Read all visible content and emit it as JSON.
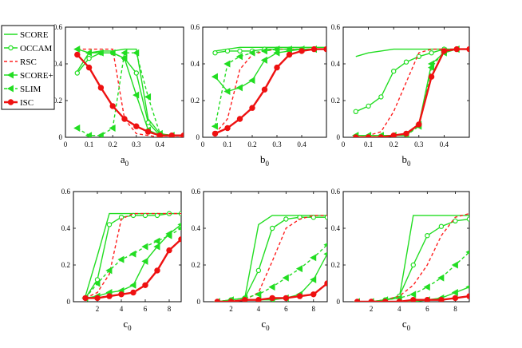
{
  "legend": [
    {
      "key": "score",
      "label": "SCORE",
      "color": "#22dd22",
      "dash": "",
      "marker": "none"
    },
    {
      "key": "occam",
      "label": "OCCAM",
      "color": "#22dd22",
      "dash": "",
      "marker": "circle"
    },
    {
      "key": "rsc",
      "label": "RSC",
      "color": "#ff2020",
      "dash": "4,3",
      "marker": "none"
    },
    {
      "key": "scorep",
      "label": "SCORE+",
      "color": "#22dd22",
      "dash": "",
      "marker": "triangle"
    },
    {
      "key": "slim",
      "label": "SLIM",
      "color": "#22dd22",
      "dash": "4,3",
      "marker": "triangle"
    },
    {
      "key": "isc",
      "label": "ISC",
      "color": "#ee1111",
      "dash": "",
      "marker": "circle-bold"
    }
  ],
  "chart_data": [
    {
      "type": "line",
      "xlabel": "a",
      "xsub": "0",
      "xlim": [
        0,
        0.5
      ],
      "ylim": [
        0,
        0.6
      ],
      "xticks": [
        "0",
        "0.1",
        "0.2",
        "0.3",
        "0.4"
      ],
      "xtick_vals": [
        0,
        0.1,
        0.2,
        0.3,
        0.4
      ],
      "yticks": [
        "0",
        "0.2",
        "0.4",
        "0.6"
      ],
      "ytick_vals": [
        0,
        0.2,
        0.4,
        0.6
      ],
      "x": [
        0.05,
        0.1,
        0.15,
        0.2,
        0.25,
        0.3,
        0.35,
        0.4,
        0.45,
        0.5
      ],
      "series": [
        {
          "key": "score",
          "values": [
            0.36,
            0.46,
            0.47,
            0.47,
            0.48,
            0.48,
            0.1,
            0.02,
            0.01,
            0.01
          ]
        },
        {
          "key": "occam",
          "values": [
            0.35,
            0.43,
            0.46,
            0.46,
            0.43,
            0.35,
            0.08,
            0.01,
            0.01,
            0.01
          ]
        },
        {
          "key": "rsc",
          "values": [
            0.48,
            0.48,
            0.48,
            0.48,
            0.1,
            0.02,
            0.01,
            0.0,
            0.0,
            0.0
          ]
        },
        {
          "key": "scorep",
          "values": [
            0.48,
            0.46,
            0.46,
            0.46,
            0.43,
            0.23,
            0.04,
            0.01,
            0.01,
            0.01
          ]
        },
        {
          "key": "slim",
          "values": [
            0.05,
            0.01,
            0.01,
            0.05,
            0.46,
            0.46,
            0.22,
            0.02,
            0.01,
            0.01
          ]
        },
        {
          "key": "isc",
          "values": [
            0.45,
            0.38,
            0.27,
            0.17,
            0.1,
            0.06,
            0.03,
            0.01,
            0.01,
            0.01
          ]
        }
      ]
    },
    {
      "type": "line",
      "xlabel": "b",
      "xsub": "0",
      "xlim": [
        0,
        0.5
      ],
      "ylim": [
        0,
        0.6
      ],
      "xticks": [
        "0",
        "0.1",
        "0.2",
        "0.3",
        "0.4"
      ],
      "xtick_vals": [
        0,
        0.1,
        0.2,
        0.3,
        0.4
      ],
      "yticks": [
        "0",
        "0.2",
        "0.4",
        "0.6"
      ],
      "ytick_vals": [
        0,
        0.2,
        0.4,
        0.6
      ],
      "x": [
        0.05,
        0.1,
        0.15,
        0.2,
        0.25,
        0.3,
        0.35,
        0.4,
        0.45,
        0.5
      ],
      "series": [
        {
          "key": "score",
          "values": [
            0.47,
            0.48,
            0.49,
            0.49,
            0.49,
            0.49,
            0.49,
            0.49,
            0.49,
            0.49
          ]
        },
        {
          "key": "occam",
          "values": [
            0.46,
            0.47,
            0.47,
            0.47,
            0.48,
            0.48,
            0.48,
            0.48,
            0.48,
            0.48
          ]
        },
        {
          "key": "rsc",
          "values": [
            0.02,
            0.1,
            0.37,
            0.45,
            0.47,
            0.48,
            0.48,
            0.48,
            0.48,
            0.48
          ]
        },
        {
          "key": "scorep",
          "values": [
            0.33,
            0.25,
            0.27,
            0.31,
            0.42,
            0.46,
            0.47,
            0.48,
            0.48,
            0.48
          ]
        },
        {
          "key": "slim",
          "values": [
            0.06,
            0.4,
            0.44,
            0.46,
            0.47,
            0.48,
            0.48,
            0.48,
            0.48,
            0.48
          ]
        },
        {
          "key": "isc",
          "values": [
            0.02,
            0.05,
            0.1,
            0.16,
            0.26,
            0.38,
            0.45,
            0.47,
            0.48,
            0.48
          ]
        }
      ]
    },
    {
      "type": "line",
      "xlabel": "b",
      "xsub": "0",
      "xlim": [
        0,
        0.5
      ],
      "ylim": [
        0,
        0.6
      ],
      "xticks": [
        "0",
        "0.1",
        "0.2",
        "0.3",
        "0.4"
      ],
      "xtick_vals": [
        0,
        0.1,
        0.2,
        0.3,
        0.4
      ],
      "yticks": [
        "0",
        "0.2",
        "0.4",
        "0.6"
      ],
      "ytick_vals": [
        0,
        0.2,
        0.4,
        0.6
      ],
      "x": [
        0.05,
        0.1,
        0.15,
        0.2,
        0.25,
        0.3,
        0.35,
        0.4,
        0.45,
        0.5
      ],
      "series": [
        {
          "key": "score",
          "values": [
            0.44,
            0.46,
            0.47,
            0.48,
            0.48,
            0.48,
            0.48,
            0.48,
            0.48,
            0.48
          ]
        },
        {
          "key": "occam",
          "values": [
            0.14,
            0.17,
            0.22,
            0.36,
            0.41,
            0.44,
            0.46,
            0.48,
            0.48,
            0.48
          ]
        },
        {
          "key": "rsc",
          "values": [
            0.01,
            0.01,
            0.03,
            0.14,
            0.3,
            0.46,
            0.48,
            0.48,
            0.48,
            0.48
          ]
        },
        {
          "key": "scorep",
          "values": [
            0.01,
            0.01,
            0.01,
            0.01,
            0.01,
            0.07,
            0.4,
            0.46,
            0.48,
            0.48
          ]
        },
        {
          "key": "slim",
          "values": [
            0.01,
            0.01,
            0.01,
            0.01,
            0.01,
            0.06,
            0.38,
            0.47,
            0.48,
            0.48
          ]
        },
        {
          "key": "isc",
          "values": [
            0.0,
            0.0,
            0.0,
            0.01,
            0.02,
            0.07,
            0.33,
            0.47,
            0.48,
            0.48
          ]
        }
      ]
    },
    {
      "type": "line",
      "xlabel": "c",
      "xsub": "0",
      "xlim": [
        0,
        9
      ],
      "ylim": [
        0,
        0.6
      ],
      "xticks": [
        "2",
        "4",
        "6",
        "8"
      ],
      "xtick_vals": [
        2,
        4,
        6,
        8
      ],
      "yticks": [
        "0",
        "0.2",
        "0.4",
        "0.6"
      ],
      "ytick_vals": [
        0,
        0.2,
        0.4,
        0.6
      ],
      "x": [
        1,
        2,
        3,
        4,
        5,
        6,
        7,
        8,
        9
      ],
      "series": [
        {
          "key": "score",
          "values": [
            0.03,
            0.25,
            0.48,
            0.48,
            0.48,
            0.48,
            0.48,
            0.48,
            0.48
          ]
        },
        {
          "key": "occam",
          "values": [
            0.02,
            0.12,
            0.42,
            0.46,
            0.47,
            0.47,
            0.47,
            0.48,
            0.48
          ]
        },
        {
          "key": "rsc",
          "values": [
            0.02,
            0.05,
            0.15,
            0.45,
            0.48,
            0.48,
            0.48,
            0.48,
            0.48
          ]
        },
        {
          "key": "scorep",
          "values": [
            0.02,
            0.03,
            0.05,
            0.06,
            0.09,
            0.22,
            0.3,
            0.37,
            0.42
          ]
        },
        {
          "key": "slim",
          "values": [
            0.02,
            0.1,
            0.17,
            0.23,
            0.26,
            0.3,
            0.33,
            0.36,
            0.4
          ]
        },
        {
          "key": "isc",
          "values": [
            0.02,
            0.02,
            0.03,
            0.04,
            0.05,
            0.09,
            0.17,
            0.28,
            0.34
          ]
        }
      ]
    },
    {
      "type": "line",
      "xlabel": "c",
      "xsub": "0",
      "xlim": [
        0,
        9
      ],
      "ylim": [
        0,
        0.6
      ],
      "xticks": [
        "2",
        "4",
        "6",
        "8"
      ],
      "xtick_vals": [
        2,
        4,
        6,
        8
      ],
      "yticks": [
        "0",
        "0.2",
        "0.4",
        "0.6"
      ],
      "ytick_vals": [
        0,
        0.2,
        0.4,
        0.6
      ],
      "x": [
        1,
        2,
        3,
        4,
        5,
        6,
        7,
        8,
        9
      ],
      "series": [
        {
          "key": "score",
          "values": [
            0.0,
            0.01,
            0.02,
            0.42,
            0.47,
            0.47,
            0.47,
            0.47,
            0.47
          ]
        },
        {
          "key": "occam",
          "values": [
            0.0,
            0.01,
            0.02,
            0.17,
            0.4,
            0.45,
            0.46,
            0.46,
            0.46
          ]
        },
        {
          "key": "rsc",
          "values": [
            0.0,
            0.0,
            0.01,
            0.05,
            0.22,
            0.4,
            0.45,
            0.47,
            0.47
          ]
        },
        {
          "key": "scorep",
          "values": [
            0.0,
            0.0,
            0.01,
            0.01,
            0.01,
            0.02,
            0.04,
            0.12,
            0.26
          ]
        },
        {
          "key": "slim",
          "values": [
            0.0,
            0.01,
            0.02,
            0.04,
            0.08,
            0.13,
            0.18,
            0.24,
            0.31
          ]
        },
        {
          "key": "isc",
          "values": [
            0.0,
            0.0,
            0.01,
            0.01,
            0.02,
            0.02,
            0.03,
            0.04,
            0.1
          ]
        }
      ]
    },
    {
      "type": "line",
      "xlabel": "c",
      "xsub": "0",
      "xlim": [
        0,
        9
      ],
      "ylim": [
        0,
        0.6
      ],
      "xticks": [
        "2",
        "4",
        "6",
        "8"
      ],
      "xtick_vals": [
        2,
        4,
        6,
        8
      ],
      "yticks": [
        "0",
        "0.2",
        "0.4",
        "0.6"
      ],
      "ytick_vals": [
        0,
        0.2,
        0.4,
        0.6
      ],
      "x": [
        1,
        2,
        3,
        4,
        5,
        6,
        7,
        8,
        9
      ],
      "series": [
        {
          "key": "score",
          "values": [
            0.0,
            0.0,
            0.01,
            0.02,
            0.47,
            0.47,
            0.47,
            0.47,
            0.47
          ]
        },
        {
          "key": "occam",
          "values": [
            0.0,
            0.0,
            0.01,
            0.03,
            0.2,
            0.36,
            0.41,
            0.44,
            0.45
          ]
        },
        {
          "key": "rsc",
          "values": [
            0.0,
            0.0,
            0.01,
            0.03,
            0.09,
            0.2,
            0.36,
            0.46,
            0.48
          ]
        },
        {
          "key": "scorep",
          "values": [
            0.0,
            0.0,
            0.0,
            0.0,
            0.0,
            0.01,
            0.02,
            0.05,
            0.08
          ]
        },
        {
          "key": "slim",
          "values": [
            0.0,
            0.0,
            0.01,
            0.02,
            0.04,
            0.08,
            0.13,
            0.2,
            0.27
          ]
        },
        {
          "key": "isc",
          "values": [
            0.0,
            0.0,
            0.0,
            0.0,
            0.01,
            0.01,
            0.01,
            0.02,
            0.03
          ]
        }
      ]
    }
  ]
}
